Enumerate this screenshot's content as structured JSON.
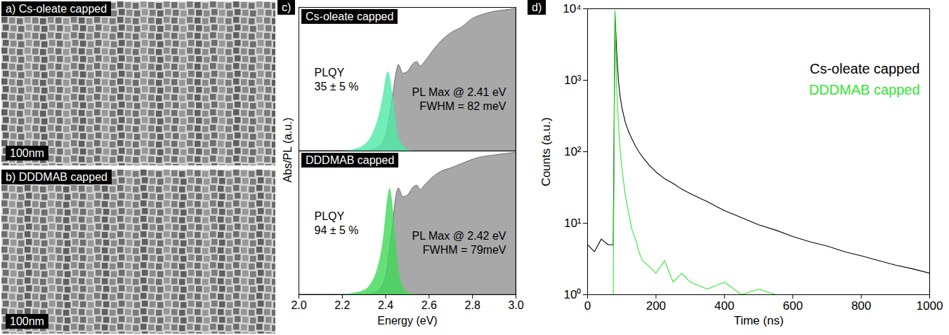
{
  "images": [
    {
      "label": "a) Cs-oleate capped",
      "scale_bar": "100nm"
    },
    {
      "label": "b) DDDMAB capped",
      "scale_bar": "100nm"
    }
  ],
  "panel_letters": [
    "c)",
    "d)"
  ],
  "chart_data": [
    {
      "type": "area",
      "title": "Cs-oleate capped",
      "y_label": "Abs/PL (a.u.)",
      "annotations": [
        [
          "PLQY",
          "35 ± 5 %"
        ],
        [
          "PL Max @ 2.41 eV",
          "FWHM = 82 meV"
        ]
      ],
      "xlim": [
        2,
        3
      ],
      "ylim": [
        0,
        1
      ],
      "tick_labels": false,
      "series": [
        {
          "color": "#a8a8a8",
          "x": [
            2.0,
            2.3,
            2.36,
            2.4,
            2.43,
            2.45,
            2.46,
            2.48,
            2.5,
            2.53,
            2.545,
            2.56,
            2.58,
            2.62,
            2.66,
            2.7,
            2.75,
            2.8,
            2.85,
            2.9,
            2.95,
            3.0
          ],
          "values": [
            0,
            0,
            0.02,
            0.1,
            0.35,
            0.55,
            0.6,
            0.54,
            0.55,
            0.61,
            0.62,
            0.59,
            0.62,
            0.7,
            0.77,
            0.82,
            0.86,
            0.92,
            0.95,
            0.97,
            0.98,
            0.99
          ]
        },
        {
          "color": "#4de8a5",
          "x": [
            2.0,
            2.2,
            2.25,
            2.3,
            2.33,
            2.36,
            2.38,
            2.39,
            2.4,
            2.41,
            2.42,
            2.43,
            2.44,
            2.45,
            2.46,
            2.48,
            2.5,
            2.55,
            3.0
          ],
          "values": [
            0,
            0,
            0.01,
            0.04,
            0.09,
            0.2,
            0.32,
            0.4,
            0.5,
            0.55,
            0.52,
            0.42,
            0.3,
            0.19,
            0.1,
            0.04,
            0.01,
            0,
            0
          ]
        }
      ]
    },
    {
      "type": "area",
      "title": "DDDMAB capped",
      "x_label": "Energy (eV)",
      "annotations": [
        [
          "PLQY",
          "94 ± 5 %"
        ],
        [
          "PL Max @ 2.42 eV",
          "FWHM = 79meV"
        ]
      ],
      "xlim": [
        2,
        3
      ],
      "ylim": [
        0,
        1
      ],
      "tick_labels": "x",
      "xticks": [
        {
          "value": 2,
          "label": "2.0"
        },
        {
          "value": 2.2,
          "label": "2.2"
        },
        {
          "value": 2.4,
          "label": "2.4"
        },
        {
          "value": 2.6,
          "label": "2.6"
        },
        {
          "value": 2.8,
          "label": "2.8"
        },
        {
          "value": 3,
          "label": "3.0"
        }
      ],
      "series": [
        {
          "color": "#a8a8a8",
          "x": [
            2.0,
            2.3,
            2.36,
            2.4,
            2.43,
            2.45,
            2.46,
            2.48,
            2.5,
            2.53,
            2.545,
            2.56,
            2.58,
            2.62,
            2.66,
            2.7,
            2.75,
            2.8,
            2.85,
            2.9,
            2.95,
            3.0
          ],
          "values": [
            0,
            0,
            0.02,
            0.12,
            0.45,
            0.7,
            0.74,
            0.68,
            0.69,
            0.75,
            0.76,
            0.73,
            0.76,
            0.82,
            0.86,
            0.88,
            0.91,
            0.94,
            0.96,
            0.97,
            0.98,
            0.99
          ]
        },
        {
          "color": "#3fd858",
          "x": [
            2.0,
            2.2,
            2.25,
            2.3,
            2.33,
            2.36,
            2.38,
            2.39,
            2.4,
            2.41,
            2.42,
            2.43,
            2.44,
            2.45,
            2.46,
            2.48,
            2.5,
            2.55,
            3.0
          ],
          "values": [
            0,
            0,
            0.01,
            0.03,
            0.07,
            0.17,
            0.3,
            0.4,
            0.55,
            0.68,
            0.74,
            0.66,
            0.5,
            0.32,
            0.18,
            0.06,
            0.02,
            0,
            0
          ]
        }
      ]
    },
    {
      "type": "line",
      "x_label": "Time (ns)",
      "y_label": "Counts (a.u.)",
      "log": "y",
      "legend": "top-right",
      "xlim": [
        0,
        1000
      ],
      "ylim": [
        1,
        10000
      ],
      "xticks": [
        0,
        200,
        400,
        600,
        800,
        1000
      ],
      "yticks": [
        {
          "value": 1,
          "label": "10⁰"
        },
        {
          "value": 10,
          "label": "10¹"
        },
        {
          "value": 100,
          "label": "10²"
        },
        {
          "value": 1000,
          "label": "10³"
        },
        {
          "value": 10000,
          "label": "10⁴"
        }
      ],
      "x": [
        0,
        20,
        40,
        60,
        75,
        80,
        85,
        90,
        95,
        100,
        110,
        120,
        130,
        140,
        150,
        160,
        180,
        200,
        225,
        250,
        275,
        300,
        350,
        400,
        450,
        500,
        550,
        600,
        650,
        700,
        750,
        800,
        850,
        900,
        950,
        1000
      ],
      "series": [
        {
          "name": "Cs-oleate capped",
          "color": "#000000",
          "values": [
            5,
            4,
            6,
            5,
            5,
            9000,
            2500,
            1000,
            600,
            420,
            260,
            190,
            150,
            120,
            100,
            85,
            65,
            52,
            42,
            36,
            30,
            26,
            20,
            15,
            12,
            9.5,
            8,
            6.5,
            5.5,
            4.8,
            4,
            3.5,
            3,
            2.6,
            2.3,
            2
          ]
        },
        {
          "name": "DDDMAB capped",
          "color": "#33e633",
          "values": [
            1,
            1,
            1,
            1,
            1,
            9500,
            800,
            250,
            110,
            60,
            25,
            14,
            8,
            6,
            4,
            3,
            2.5,
            2,
            3,
            1.5,
            2,
            1.5,
            1.2,
            1.5,
            1,
            1.2,
            1,
            1,
            1,
            1,
            1,
            1,
            1,
            1,
            1,
            1
          ]
        }
      ]
    }
  ]
}
